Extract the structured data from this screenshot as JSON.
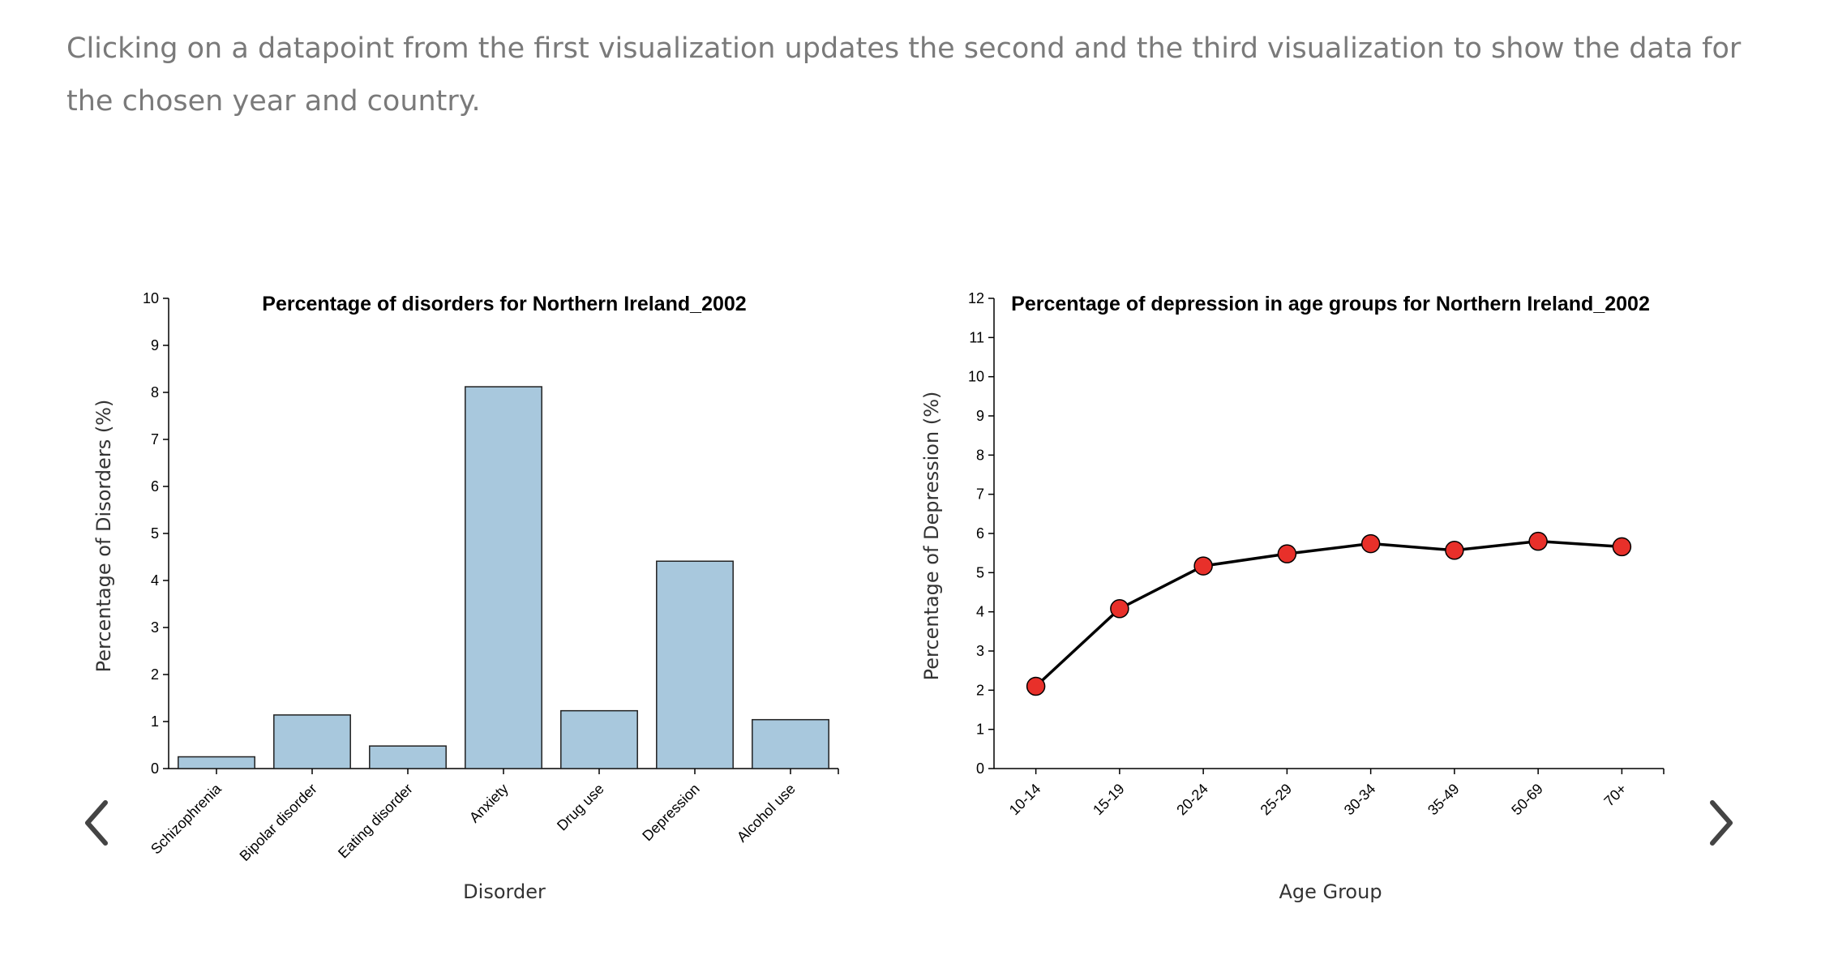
{
  "intro_text": "Clicking on a datapoint from the first visualization updates the second and the third visualization to show the data for the chosen year and country.",
  "navigation": {
    "prev_icon": "chevron-left-icon",
    "next_icon": "chevron-right-icon"
  },
  "colors": {
    "bar_fill": "#a8c8dd",
    "bar_stroke": "#222222",
    "point_fill": "#e8302a",
    "line": "#000000"
  },
  "chart_data": [
    {
      "type": "bar",
      "title": "Percentage of disorders for Northern Ireland_2002",
      "xlabel": "Disorder",
      "ylabel": "Percentage of Disorders (%)",
      "categories": [
        "Schizophrenia",
        "Bipolar disorder",
        "Eating disorder",
        "Anxiety",
        "Drug use",
        "Depression",
        "Alcohol use"
      ],
      "values": [
        0.25,
        1.14,
        0.48,
        8.12,
        1.23,
        4.41,
        1.04
      ],
      "ylim": [
        0,
        10
      ],
      "yticks": [
        "0",
        "1",
        "2",
        "3",
        "4",
        "5",
        "6",
        "7",
        "8",
        "9",
        "10"
      ],
      "grid": false
    },
    {
      "type": "line",
      "title": "Percentage of depression in age groups for Northern Ireland_2002",
      "xlabel": "Age Group",
      "ylabel": "Percentage of Depression (%)",
      "categories": [
        "10-14",
        "15-19",
        "20-24",
        "25-29",
        "30-34",
        "35-49",
        "50-69",
        "70+"
      ],
      "values": [
        2.1,
        4.08,
        5.17,
        5.48,
        5.74,
        5.57,
        5.8,
        5.66
      ],
      "ylim": [
        0,
        12
      ],
      "yticks": [
        "0",
        "1",
        "2",
        "3",
        "4",
        "5",
        "6",
        "7",
        "8",
        "9",
        "10",
        "11",
        "12"
      ],
      "grid": false,
      "markers": true
    }
  ]
}
